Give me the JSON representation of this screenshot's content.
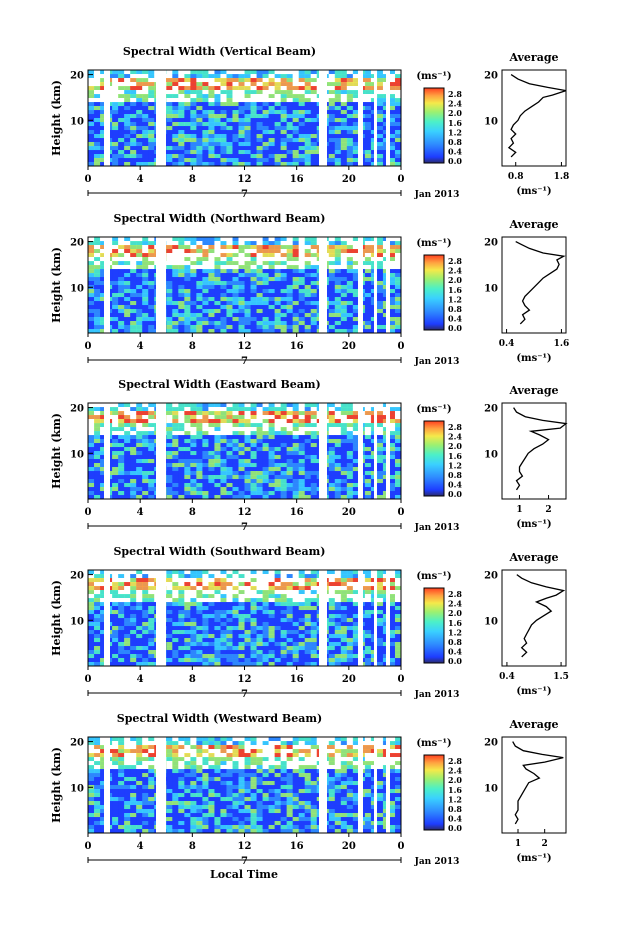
{
  "chart_data": {
    "type": "heatmap",
    "date_label": "Jan 2013",
    "day_marker": "7",
    "xlabel_bottom": "Local Time",
    "time_ticks": [
      "0",
      "4",
      "8",
      "12",
      "16",
      "20",
      "0"
    ],
    "height_ticks": [
      "20",
      "10"
    ],
    "height_label": "Height (km)",
    "colorbar_unit": "(ms⁻¹)",
    "colorbar_ticks": [
      "2.8",
      "2.4",
      "2.0",
      "1.6",
      "1.2",
      "0.8",
      "0.4",
      "0.0"
    ],
    "colors": [
      "#2b2b6b",
      "#1e3cff",
      "#2f8cff",
      "#3ad0ff",
      "#4cf0c8",
      "#9cf070",
      "#f5e94a",
      "#ffa040",
      "#ff4020"
    ],
    "avg_title": "Average",
    "avg_xlabel": "(ms⁻¹)",
    "panels": [
      {
        "title": "Spectral Width (Vertical Beam)",
        "avg_ticks": [
          "0.8",
          "1.8"
        ],
        "avg_xlim": [
          0.5,
          1.9
        ],
        "avg_profile": [
          [
            0.7,
            2
          ],
          [
            0.8,
            3
          ],
          [
            0.65,
            4
          ],
          [
            0.75,
            5
          ],
          [
            0.7,
            6
          ],
          [
            0.8,
            7
          ],
          [
            0.7,
            8
          ],
          [
            0.75,
            9
          ],
          [
            0.85,
            10
          ],
          [
            0.9,
            11
          ],
          [
            1.0,
            12
          ],
          [
            1.15,
            13
          ],
          [
            1.3,
            14
          ],
          [
            1.4,
            15
          ],
          [
            1.6,
            15.5
          ],
          [
            1.9,
            16.5
          ],
          [
            1.5,
            17.2
          ],
          [
            1.1,
            18
          ],
          [
            0.85,
            19
          ],
          [
            0.7,
            20
          ]
        ]
      },
      {
        "title": "Spectral Width (Northward Beam)",
        "avg_ticks": [
          "0.4",
          "1.6"
        ],
        "avg_xlim": [
          0.3,
          1.7
        ],
        "avg_profile": [
          [
            0.7,
            2
          ],
          [
            0.8,
            3
          ],
          [
            0.75,
            4
          ],
          [
            0.9,
            5
          ],
          [
            0.8,
            6
          ],
          [
            0.75,
            7
          ],
          [
            0.8,
            8
          ],
          [
            0.9,
            9
          ],
          [
            1.0,
            10
          ],
          [
            1.1,
            11
          ],
          [
            1.2,
            12
          ],
          [
            1.35,
            13
          ],
          [
            1.5,
            14
          ],
          [
            1.55,
            15
          ],
          [
            1.5,
            16
          ],
          [
            1.65,
            16.8
          ],
          [
            1.2,
            17.5
          ],
          [
            0.9,
            18.5
          ],
          [
            0.7,
            19.5
          ],
          [
            0.6,
            20
          ]
        ]
      },
      {
        "title": "Spectral Width (Eastward Beam)",
        "avg_ticks": [
          "1",
          "2"
        ],
        "avg_xlim": [
          0.4,
          2.6
        ],
        "avg_profile": [
          [
            0.9,
            2
          ],
          [
            1.0,
            3
          ],
          [
            0.9,
            4
          ],
          [
            1.1,
            5
          ],
          [
            1.0,
            6
          ],
          [
            1.0,
            7
          ],
          [
            1.1,
            8
          ],
          [
            1.2,
            9
          ],
          [
            1.3,
            10
          ],
          [
            1.5,
            11
          ],
          [
            1.8,
            12
          ],
          [
            2.0,
            13
          ],
          [
            1.7,
            14
          ],
          [
            1.4,
            14.8
          ],
          [
            2.4,
            15.5
          ],
          [
            2.6,
            16.5
          ],
          [
            1.8,
            17.2
          ],
          [
            1.2,
            18
          ],
          [
            0.9,
            19
          ],
          [
            0.8,
            20
          ]
        ]
      },
      {
        "title": "Spectral Width (Southward Beam)",
        "avg_ticks": [
          "0.4",
          "1.5"
        ],
        "avg_xlim": [
          0.3,
          1.6
        ],
        "avg_profile": [
          [
            0.7,
            2
          ],
          [
            0.8,
            3
          ],
          [
            0.7,
            4
          ],
          [
            0.8,
            5
          ],
          [
            0.75,
            6
          ],
          [
            0.8,
            7
          ],
          [
            0.85,
            8
          ],
          [
            0.9,
            9
          ],
          [
            1.0,
            10
          ],
          [
            1.15,
            11
          ],
          [
            1.3,
            12
          ],
          [
            1.2,
            13
          ],
          [
            1.0,
            14
          ],
          [
            1.2,
            14.8
          ],
          [
            1.4,
            15.5
          ],
          [
            1.55,
            16.5
          ],
          [
            1.2,
            17.3
          ],
          [
            0.9,
            18.2
          ],
          [
            0.7,
            19.2
          ],
          [
            0.6,
            20
          ]
        ]
      },
      {
        "title": "Spectral Width (Westward Beam)",
        "avg_ticks": [
          "1",
          "2"
        ],
        "avg_xlim": [
          0.4,
          2.8
        ],
        "avg_profile": [
          [
            0.9,
            2
          ],
          [
            1.0,
            3
          ],
          [
            0.9,
            4
          ],
          [
            1.0,
            5
          ],
          [
            1.0,
            6
          ],
          [
            1.0,
            7
          ],
          [
            1.1,
            8
          ],
          [
            1.2,
            9
          ],
          [
            1.3,
            10
          ],
          [
            1.4,
            11
          ],
          [
            1.8,
            12
          ],
          [
            1.6,
            13
          ],
          [
            1.3,
            14
          ],
          [
            1.2,
            14.8
          ],
          [
            2.0,
            15.5
          ],
          [
            2.7,
            16.5
          ],
          [
            1.9,
            17.2
          ],
          [
            1.2,
            18
          ],
          [
            0.9,
            19
          ],
          [
            0.8,
            20
          ]
        ]
      }
    ]
  }
}
